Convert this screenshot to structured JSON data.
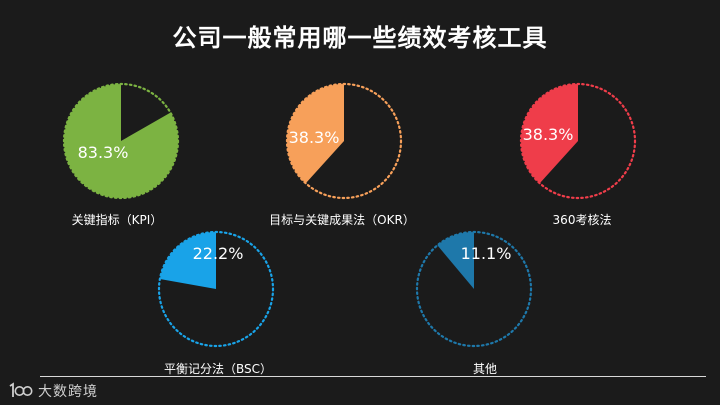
{
  "title": "公司一般常用哪一些绩效考核工具",
  "logo_text": "大数跨境",
  "chart_data": [
    {
      "type": "pie",
      "label": "关键指标（KPI）",
      "value": 83.3,
      "value_label": "83.3%",
      "color": "#7cb342"
    },
    {
      "type": "pie",
      "label": "目标与关键成果法（OKR）",
      "value": 38.3,
      "value_label": "38.3%",
      "color": "#f7a05a"
    },
    {
      "type": "pie",
      "label": "360考核法",
      "value": 38.3,
      "value_label": "38.3%",
      "color": "#ef3d4a"
    },
    {
      "type": "pie",
      "label": "平衡记分法（BSC）",
      "value": 22.2,
      "value_label": "22.2%",
      "color": "#19a3e8"
    },
    {
      "type": "pie",
      "label": "其他",
      "value": 11.1,
      "value_label": "11.1%",
      "color": "#1e78aa"
    }
  ]
}
